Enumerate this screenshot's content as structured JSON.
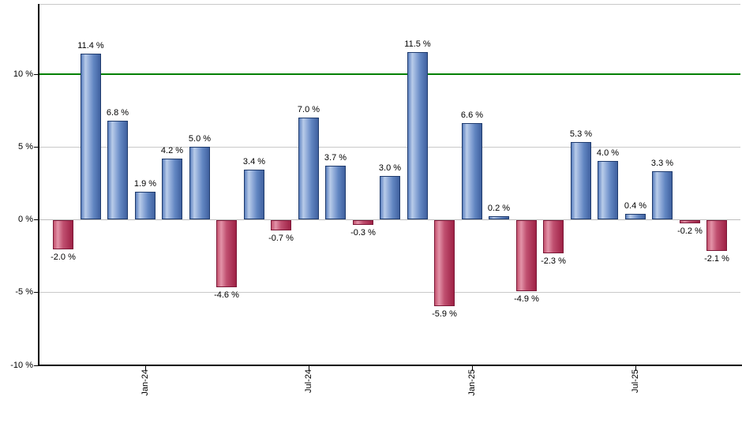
{
  "chart_data": {
    "type": "bar",
    "title": "",
    "xlabel": "",
    "ylabel": "",
    "unit": "%",
    "grid": true,
    "legend": null,
    "ylim": [
      -10.05,
      14.75
    ],
    "values": [
      -2.0,
      11.4,
      6.8,
      1.9,
      4.2,
      5.0,
      -4.6,
      3.4,
      -0.7,
      7.0,
      3.7,
      -0.3,
      3.0,
      11.5,
      -5.9,
      6.6,
      0.2,
      -4.9,
      -2.3,
      5.3,
      4.0,
      0.4,
      3.3,
      -0.2,
      -2.1
    ],
    "bar_labels": [
      "-2.0 %",
      "11.4 %",
      "6.8 %",
      "1.9 %",
      "4.2 %",
      "5.0 %",
      "-4.6 %",
      "3.4 %",
      "-0.7 %",
      "7.0 %",
      "3.7 %",
      "-0.3 %",
      "3.0 %",
      "11.5 %",
      "-5.9 %",
      "6.6 %",
      "0.2 %",
      "-4.9 %",
      "-2.3 %",
      "5.3 %",
      "4.0 %",
      "0.4 %",
      "3.3 %",
      "-0.2 %",
      "-2.1 %"
    ],
    "y_ticks": [
      {
        "value": 10,
        "label": "10 %"
      },
      {
        "value": 5,
        "label": "5 %"
      },
      {
        "value": 0,
        "label": "0 %"
      },
      {
        "value": -5,
        "label": "-5 %"
      },
      {
        "value": -10,
        "label": "-10 %"
      }
    ],
    "x_ticks": [
      {
        "index": 3,
        "label": "Jan-24"
      },
      {
        "index": 9,
        "label": "Jul-24"
      },
      {
        "index": 15,
        "label": "Jan-25"
      },
      {
        "index": 21,
        "label": "Jul-25"
      }
    ],
    "reference_line": {
      "value": 10,
      "color": "#008000"
    },
    "colors": {
      "positive_main": "#6286c2",
      "positive_light": "#b9cce9",
      "positive_dark": "#40619f",
      "positive_border": "#1f3b6d",
      "negative_main": "#c4536f",
      "negative_light": "#e393a8",
      "negative_dark": "#9e2145",
      "negative_border": "#7c1838",
      "grid": "#c9c9c9",
      "axis": "#000000",
      "background": "#ffffff"
    }
  }
}
